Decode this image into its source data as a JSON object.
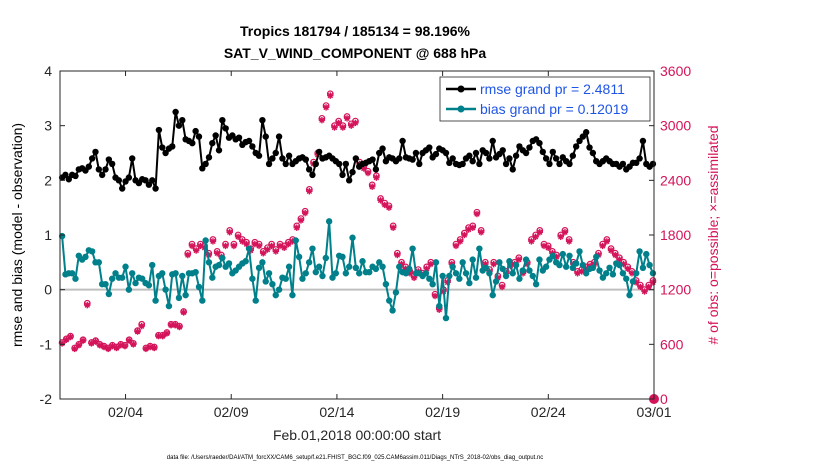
{
  "chart_data": {
    "type": "line",
    "title_line1": "Tropics 181794 / 185134 = 98.196%",
    "title_line2": "SAT_V_WIND_COMPONENT @ 688 hPa",
    "xlabel": "Feb.01,2018 00:00:00 start",
    "ylabel_left": "rmse and bias (model - observation)",
    "ylabel_right": "# of obs: o=possible; ×=assimilated",
    "footnote": "data file: /Users/raeder/DAI/ATM_forcXX/CAM6_setup/f.e21.FHIST_BGC.f09_025.CAM6assim.011/Diags_NTrS_2018-02/obs_diag_output.nc",
    "x_range_days": [
      0.9,
      29
    ],
    "x_ticks": [
      {
        "day": 4,
        "label": "02/04"
      },
      {
        "day": 9,
        "label": "02/09"
      },
      {
        "day": 14,
        "label": "02/14"
      },
      {
        "day": 19,
        "label": "02/19"
      },
      {
        "day": 24,
        "label": "02/24"
      },
      {
        "day": 29,
        "label": "03/01"
      }
    ],
    "ylim_left": [
      -2,
      4
    ],
    "yticks_left": [
      "-2",
      "-1",
      "0",
      "1",
      "2",
      "3",
      "4"
    ],
    "ylim_right": [
      0,
      3600
    ],
    "yticks_right": [
      "0",
      "600",
      "1200",
      "1800",
      "2400",
      "3000",
      "3600"
    ],
    "zero_line": 0,
    "legend_position": "top-right",
    "series": [
      {
        "name": "rmse grand pr = 2.4811",
        "axis": "left",
        "color": "#000000",
        "marker": "filled-circle",
        "values": [
          2.05,
          2.1,
          2.02,
          2.1,
          2.08,
          2.2,
          2.22,
          2.18,
          2.25,
          2.4,
          2.52,
          2.2,
          2.1,
          2.2,
          2.38,
          2.3,
          2.05,
          2.0,
          1.85,
          1.98,
          2.05,
          2.4,
          2.0,
          1.95,
          2.02,
          2.0,
          1.92,
          2.0,
          1.85,
          2.92,
          2.6,
          2.5,
          2.58,
          2.62,
          3.25,
          3.0,
          3.1,
          2.75,
          2.72,
          2.68,
          2.9,
          2.8,
          2.22,
          2.3,
          2.42,
          2.68,
          2.82,
          2.55,
          3.1,
          2.95,
          2.78,
          2.82,
          2.75,
          2.78,
          2.65,
          2.7,
          2.72,
          2.62,
          2.5,
          2.45,
          3.1,
          2.8,
          2.3,
          2.4,
          2.5,
          2.8,
          2.4,
          2.3,
          2.45,
          2.3,
          2.35,
          2.4,
          2.42,
          2.38,
          2.2,
          2.1,
          2.3,
          2.52,
          2.4,
          2.42,
          2.45,
          2.4,
          2.35,
          2.3,
          2.1,
          2.3,
          2.0,
          2.15,
          2.4,
          2.25,
          2.3,
          2.32,
          2.35,
          2.38,
          2.2,
          2.5,
          2.58,
          2.35,
          2.42,
          2.4,
          2.35,
          2.4,
          2.72,
          2.42,
          2.4,
          2.38,
          2.5,
          2.3,
          2.5,
          2.55,
          2.6,
          2.42,
          2.48,
          2.58,
          2.55,
          2.5,
          2.32,
          2.4,
          2.3,
          2.28,
          2.3,
          2.4,
          2.45,
          2.35,
          2.5,
          2.3,
          2.55,
          2.5,
          2.4,
          2.72,
          2.42,
          2.48,
          2.55,
          2.3,
          2.4,
          2.2,
          2.45,
          2.62,
          2.55,
          2.5,
          2.6,
          2.72,
          2.75,
          2.68,
          2.52,
          2.4,
          2.3,
          2.52,
          2.4,
          2.3,
          2.42,
          2.35,
          2.3,
          2.45,
          2.62,
          2.72,
          2.8,
          2.88,
          2.6,
          2.5,
          2.35,
          2.3,
          2.35,
          2.4,
          2.35,
          2.3,
          2.3,
          2.25,
          2.3,
          2.2,
          2.25,
          2.32,
          2.32,
          2.4,
          2.72,
          2.3,
          2.25,
          2.3
        ]
      },
      {
        "name": "bias grand pr = 0.12019",
        "axis": "left",
        "color": "#00808b",
        "marker": "filled-circle",
        "values": [
          0.98,
          0.28,
          0.3,
          0.3,
          0.2,
          0.62,
          0.55,
          0.6,
          0.72,
          0.7,
          0.5,
          0.5,
          0.1,
          0.1,
          -0.08,
          0.2,
          0.3,
          0.22,
          0.22,
          0.42,
          0.0,
          0.3,
          0.12,
          0.22,
          0.2,
          0.12,
          0.08,
          0.45,
          -0.2,
          0.25,
          0.3,
          0.0,
          -0.3,
          0.28,
          0.3,
          -0.15,
          0.25,
          -0.1,
          0.3,
          0.3,
          0.32,
          0.05,
          -0.2,
          0.9,
          0.5,
          0.22,
          0.42,
          0.45,
          0.58,
          0.42,
          0.48,
          0.3,
          0.35,
          0.42,
          0.48,
          0.52,
          0.75,
          0.2,
          -0.2,
          0.4,
          0.5,
          0.15,
          0.3,
          0.1,
          -0.1,
          0.0,
          0.22,
          0.2,
          0.42,
          -0.1,
          0.9,
          0.6,
          0.2,
          0.3,
          0.5,
          0.75,
          0.32,
          0.42,
          0.25,
          0.58,
          1.25,
          0.22,
          0.3,
          0.62,
          0.6,
          0.3,
          0.42,
          0.95,
          0.4,
          0.3,
          0.52,
          0.32,
          0.32,
          0.42,
          0.38,
          0.5,
          0.42,
          0.1,
          -0.2,
          -0.38,
          -0.05,
          0.42,
          0.32,
          0.3,
          0.38,
          0.75,
          0.3,
          0.3,
          0.25,
          0.3,
          0.2,
          0.1,
          0.5,
          -0.3,
          0.25,
          -0.52,
          0.25,
          0.42,
          0.3,
          0.2,
          0.5,
          0.3,
          0.12,
          0.55,
          0.22,
          0.75,
          0.35,
          0.4,
          0.3,
          -0.1,
          0.15,
          0.5,
          0.38,
          0.25,
          0.52,
          0.3,
          0.45,
          0.2,
          0.35,
          0.55,
          0.35,
          0.25,
          0.1,
          0.55,
          0.35,
          0.42,
          0.55,
          0.62,
          0.5,
          0.45,
          0.65,
          0.42,
          0.62,
          0.4,
          0.48,
          0.7,
          0.45,
          0.3,
          0.38,
          0.4,
          0.6,
          0.35,
          0.22,
          0.3,
          0.4,
          0.28,
          0.48,
          0.45,
          0.3,
          0.2,
          -0.1,
          0.15,
          0.3,
          0.7,
          0.4,
          0.65,
          0.45,
          0.3
        ]
      },
      {
        "name": "# of obs possible",
        "axis": "right",
        "color": "#d4145a",
        "marker": "open-circle",
        "values": [
          620,
          660,
          690,
          560,
          600,
          650,
          1050,
          620,
          640,
          600,
          580,
          560,
          590,
          570,
          600,
          590,
          650,
          610,
          750,
          820,
          560,
          580,
          570,
          700,
          700,
          730,
          820,
          820,
          800,
          960,
          1600,
          1700,
          1650,
          1700,
          1680,
          1600,
          1750,
          1620,
          1580,
          1700,
          1850,
          1700,
          1800,
          1750,
          1720,
          1650,
          1720,
          1700,
          1620,
          1660,
          1700,
          1640,
          1700,
          1680,
          1720,
          1750,
          1900,
          1980,
          2060,
          2300,
          2600,
          2700,
          3080,
          3220,
          3350,
          3000,
          3050,
          3000,
          3100,
          3020,
          3050,
          2600,
          2550,
          2500,
          2350,
          2450,
          2200,
          2150,
          2120,
          1900,
          1600,
          1500,
          1450,
          1400,
          1350,
          1420,
          1380,
          1450,
          1500,
          1150,
          1000,
          1200,
          1300,
          1500,
          1700,
          1750,
          1820,
          1880,
          1900,
          2050,
          1850,
          1500,
          1420,
          1500,
          1350,
          1250,
          1400,
          1480,
          1500,
          1550,
          1400,
          1500,
          1750,
          1800,
          1850,
          1700,
          1680,
          1620,
          1580,
          1800,
          1850,
          1750,
          1500,
          1400,
          1420,
          1450,
          1480,
          1500,
          1600,
          1700,
          1750,
          1650,
          1600,
          1550,
          1500,
          1450,
          1400,
          1300,
          1250,
          1200,
          1250,
          1300
        ]
      },
      {
        "name": "# of obs assimilated",
        "axis": "right",
        "color": "#d4145a",
        "marker": "asterisk",
        "values": [
          610,
          650,
          680,
          550,
          590,
          640,
          1030,
          610,
          630,
          590,
          570,
          550,
          580,
          560,
          590,
          580,
          640,
          600,
          740,
          800,
          550,
          570,
          560,
          690,
          690,
          720,
          810,
          810,
          790,
          950,
          1580,
          1680,
          1630,
          1680,
          1660,
          1580,
          1730,
          1600,
          1560,
          1680,
          1830,
          1680,
          1780,
          1730,
          1700,
          1630,
          1700,
          1680,
          1600,
          1640,
          1680,
          1620,
          1680,
          1660,
          1700,
          1730,
          1880,
          1960,
          2040,
          2280,
          2580,
          2680,
          3060,
          3200,
          3330,
          2980,
          3030,
          2980,
          3080,
          3000,
          3030,
          2580,
          2530,
          2480,
          2330,
          2430,
          2180,
          2130,
          2100,
          1880,
          1580,
          1480,
          1430,
          1380,
          1330,
          1400,
          1360,
          1430,
          1480,
          1130,
          980,
          1180,
          1280,
          1480,
          1680,
          1730,
          1800,
          1860,
          1880,
          2030,
          1830,
          1480,
          1400,
          1480,
          1330,
          1230,
          1380,
          1460,
          1480,
          1530,
          1380,
          1480,
          1730,
          1780,
          1830,
          1680,
          1660,
          1600,
          1560,
          1780,
          1830,
          1730,
          1480,
          1380,
          1400,
          1430,
          1460,
          1480,
          1580,
          1680,
          1730,
          1630,
          1580,
          1530,
          1480,
          1430,
          1380,
          1280,
          1230,
          1180,
          1230,
          1280
        ]
      }
    ]
  }
}
